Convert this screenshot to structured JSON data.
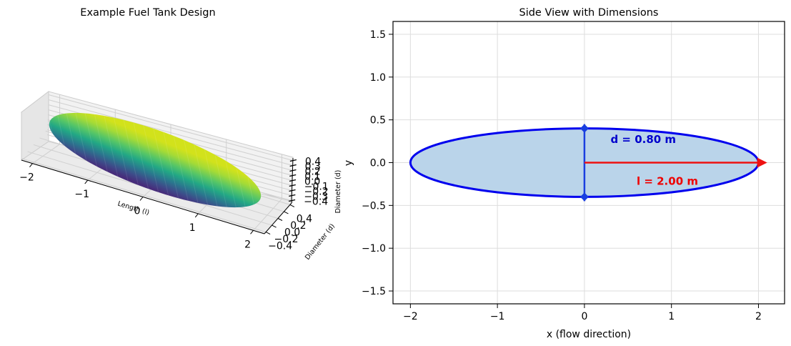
{
  "chart_data": [
    {
      "type": "surface3d",
      "title": "Example Fuel Tank Design",
      "xlabel": "Length (l)",
      "ylabel": "Diameter (d)",
      "zlabel": "Diameter (d)",
      "xlim": [
        -2.2,
        2.2
      ],
      "ylim": [
        -0.45,
        0.45
      ],
      "zlim": [
        -0.45,
        0.45
      ],
      "x_ticks": [
        "−2",
        "−1",
        "0",
        "1",
        "2"
      ],
      "x_tick_values": [
        -2,
        -1,
        0,
        1,
        2
      ],
      "y_ticks": [
        "−0.4",
        "−0.2",
        "0.0",
        "0.2",
        "0.4"
      ],
      "y_tick_values": [
        -0.4,
        -0.2,
        0.0,
        0.2,
        0.4
      ],
      "z_ticks": [
        "0.4",
        "0.3",
        "0.2",
        "0.1",
        "0.0",
        "−0.1",
        "−0.2",
        "−0.3",
        "−0.4"
      ],
      "z_tick_values": [
        0.4,
        0.3,
        0.2,
        0.1,
        0.0,
        -0.1,
        -0.2,
        -0.3,
        -0.4
      ],
      "colormap": "viridis",
      "grid": true,
      "surface": {
        "shape": "ellipsoid",
        "semi_length": 2.0,
        "radius": 0.4
      }
    },
    {
      "type": "line",
      "title": "Side View with Dimensions",
      "xlabel": "x (flow direction)",
      "ylabel": "y",
      "xlim": [
        -2.2,
        2.3
      ],
      "ylim": [
        -1.65,
        1.65
      ],
      "x_ticks": [
        "−2",
        "−1",
        "0",
        "1",
        "2"
      ],
      "x_tick_values": [
        -2,
        -1,
        0,
        1,
        2
      ],
      "y_ticks": [
        "1.5",
        "1.0",
        "0.5",
        "0.0",
        "−0.5",
        "−1.0",
        "−1.5"
      ],
      "y_tick_values": [
        1.5,
        1.0,
        0.5,
        0.0,
        -0.5,
        -1.0,
        -1.5
      ],
      "grid": true,
      "ellipse": {
        "a": 2.0,
        "b": 0.4,
        "fill": "#bad4ea",
        "stroke": "#0000ee"
      },
      "length_arrow": {
        "from": [
          0,
          0
        ],
        "to": [
          2.1,
          0
        ],
        "color": "#ee1111"
      },
      "diameter_arrow": {
        "from": [
          0,
          -0.45
        ],
        "to": [
          0,
          0.45
        ],
        "color": "#1a3fe0"
      },
      "annotations": [
        {
          "text": "d = 0.80 m",
          "x": 0.3,
          "y": 0.23,
          "color": "#0000cc"
        },
        {
          "text": "l = 2.00 m",
          "x": 0.6,
          "y": -0.26,
          "color": "#ee0000"
        }
      ]
    }
  ]
}
